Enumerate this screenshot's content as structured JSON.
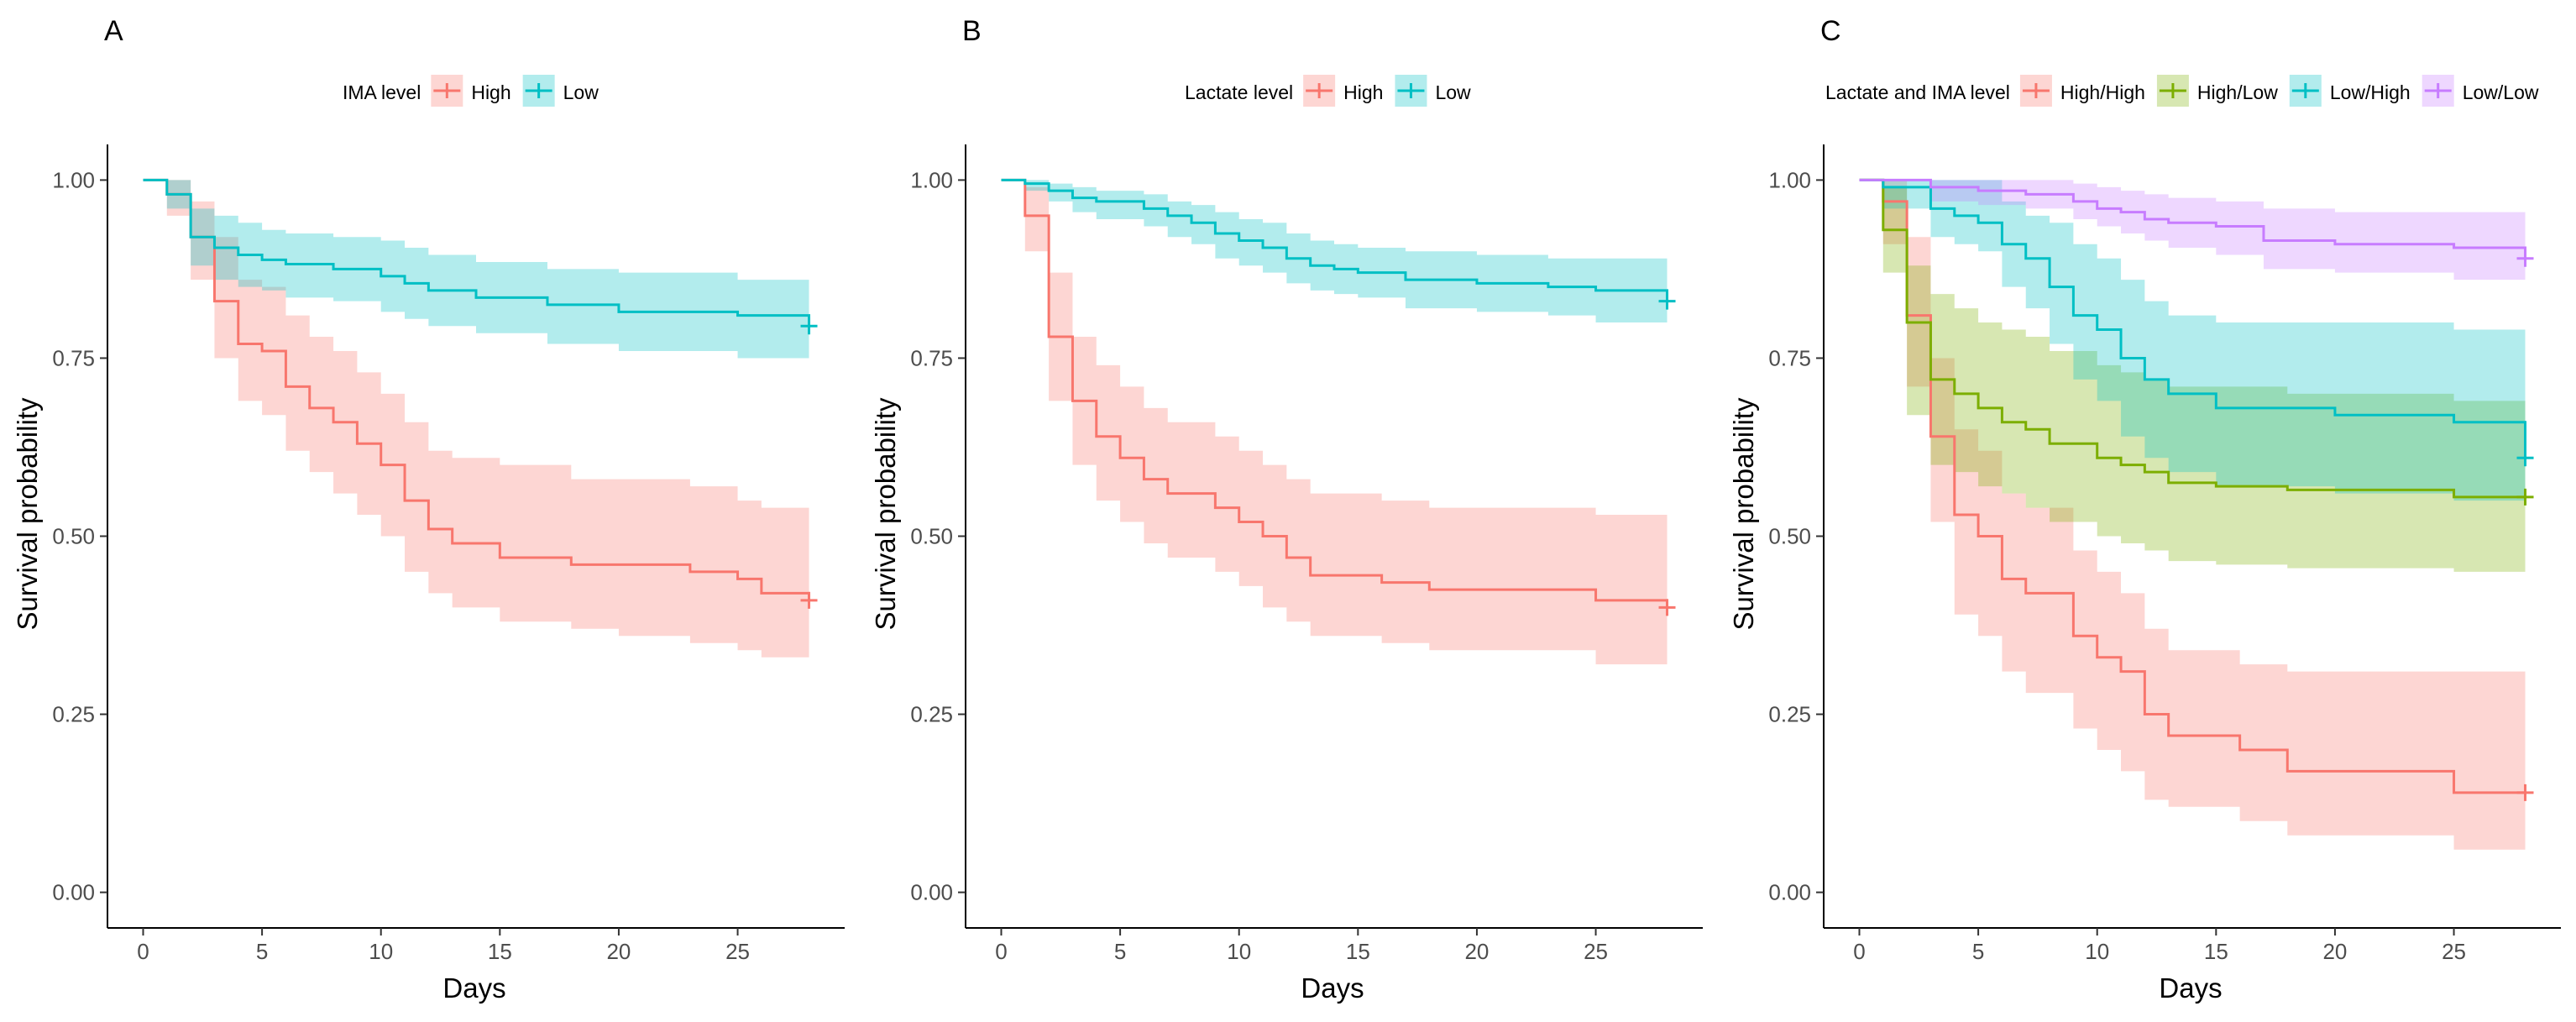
{
  "figure_type": "Kaplan-Meier survival curves",
  "chart_data": [
    {
      "type": "line",
      "panel_label": "A",
      "legend_title": "IMA level",
      "xlabel": "Days",
      "ylabel": "Survival probability",
      "xlim": [
        -1.5,
        29.5
      ],
      "ylim": [
        -0.05,
        1.05
      ],
      "xticks": [
        "0",
        "5",
        "10",
        "15",
        "20",
        "25"
      ],
      "yticks": [
        "0.00",
        "0.25",
        "0.50",
        "0.75",
        "1.00"
      ],
      "series": [
        {
          "name": "High",
          "color": "#F8766D",
          "censor_x": 28,
          "x": [
            0,
            1,
            2,
            3,
            4,
            5,
            6,
            7,
            8,
            9,
            10,
            11,
            12,
            13,
            15,
            18,
            20,
            23,
            25,
            26,
            28
          ],
          "y": [
            1.0,
            0.98,
            0.92,
            0.83,
            0.77,
            0.76,
            0.71,
            0.68,
            0.66,
            0.63,
            0.6,
            0.55,
            0.51,
            0.49,
            0.47,
            0.46,
            0.46,
            0.45,
            0.44,
            0.42,
            0.41
          ],
          "lower": [
            1.0,
            0.95,
            0.86,
            0.75,
            0.69,
            0.67,
            0.62,
            0.59,
            0.56,
            0.53,
            0.5,
            0.45,
            0.42,
            0.4,
            0.38,
            0.37,
            0.36,
            0.35,
            0.34,
            0.33,
            0.33
          ],
          "upper": [
            1.0,
            1.0,
            0.97,
            0.92,
            0.86,
            0.85,
            0.81,
            0.78,
            0.76,
            0.73,
            0.7,
            0.66,
            0.62,
            0.61,
            0.6,
            0.58,
            0.58,
            0.57,
            0.55,
            0.54,
            0.54
          ]
        },
        {
          "name": "Low",
          "color": "#00BFC4",
          "censor_x": 28,
          "x": [
            0,
            1,
            2,
            3,
            4,
            5,
            6,
            8,
            10,
            11,
            12,
            14,
            17,
            20,
            25,
            28
          ],
          "y": [
            1.0,
            0.98,
            0.92,
            0.905,
            0.895,
            0.888,
            0.882,
            0.875,
            0.865,
            0.855,
            0.845,
            0.835,
            0.825,
            0.815,
            0.81,
            0.795
          ],
          "lower": [
            1.0,
            0.96,
            0.88,
            0.86,
            0.85,
            0.845,
            0.835,
            0.83,
            0.815,
            0.805,
            0.795,
            0.785,
            0.77,
            0.76,
            0.75,
            0.75
          ],
          "upper": [
            1.0,
            1.0,
            0.96,
            0.95,
            0.94,
            0.93,
            0.925,
            0.92,
            0.915,
            0.905,
            0.895,
            0.885,
            0.875,
            0.87,
            0.86,
            0.86
          ]
        }
      ]
    },
    {
      "type": "line",
      "panel_label": "B",
      "legend_title": "Lactate level",
      "xlabel": "Days",
      "ylabel": "Survival probability",
      "xlim": [
        -1.5,
        29.5
      ],
      "ylim": [
        -0.05,
        1.05
      ],
      "xticks": [
        "0",
        "5",
        "10",
        "15",
        "20",
        "25"
      ],
      "yticks": [
        "0.00",
        "0.25",
        "0.50",
        "0.75",
        "1.00"
      ],
      "series": [
        {
          "name": "High",
          "color": "#F8766D",
          "censor_x": 28,
          "x": [
            0,
            1,
            2,
            3,
            4,
            5,
            6,
            7,
            9,
            10,
            11,
            12,
            13,
            16,
            18,
            25,
            28
          ],
          "y": [
            1.0,
            0.95,
            0.78,
            0.69,
            0.64,
            0.61,
            0.58,
            0.56,
            0.54,
            0.52,
            0.5,
            0.47,
            0.445,
            0.435,
            0.425,
            0.41,
            0.4
          ],
          "lower": [
            1.0,
            0.9,
            0.69,
            0.6,
            0.55,
            0.52,
            0.49,
            0.47,
            0.45,
            0.43,
            0.4,
            0.38,
            0.36,
            0.35,
            0.34,
            0.32,
            0.32
          ],
          "upper": [
            1.0,
            0.99,
            0.87,
            0.78,
            0.74,
            0.71,
            0.68,
            0.66,
            0.64,
            0.62,
            0.6,
            0.58,
            0.56,
            0.55,
            0.54,
            0.53,
            0.53
          ]
        },
        {
          "name": "Low",
          "color": "#00BFC4",
          "censor_x": 28,
          "x": [
            0,
            1,
            2,
            3,
            4,
            6,
            7,
            8,
            9,
            10,
            11,
            12,
            13,
            14,
            15,
            17,
            20,
            23,
            25,
            28
          ],
          "y": [
            1.0,
            0.995,
            0.985,
            0.975,
            0.97,
            0.96,
            0.95,
            0.94,
            0.925,
            0.915,
            0.905,
            0.89,
            0.88,
            0.875,
            0.87,
            0.86,
            0.855,
            0.85,
            0.845,
            0.83
          ],
          "lower": [
            1.0,
            0.985,
            0.97,
            0.955,
            0.945,
            0.935,
            0.92,
            0.91,
            0.89,
            0.88,
            0.87,
            0.855,
            0.845,
            0.84,
            0.835,
            0.82,
            0.815,
            0.81,
            0.8,
            0.8
          ],
          "upper": [
            1.0,
            1.0,
            0.995,
            0.99,
            0.985,
            0.98,
            0.97,
            0.965,
            0.955,
            0.945,
            0.94,
            0.925,
            0.915,
            0.91,
            0.905,
            0.9,
            0.895,
            0.89,
            0.89,
            0.89
          ]
        }
      ]
    },
    {
      "type": "line",
      "panel_label": "C",
      "legend_title": "Lactate and IMA level",
      "xlabel": "Days",
      "ylabel": "Survival probability",
      "xlim": [
        -1.5,
        29.5
      ],
      "ylim": [
        -0.05,
        1.05
      ],
      "xticks": [
        "0",
        "5",
        "10",
        "15",
        "20",
        "25"
      ],
      "yticks": [
        "0.00",
        "0.25",
        "0.50",
        "0.75",
        "1.00"
      ],
      "series": [
        {
          "name": "High/High",
          "color": "#F8766D",
          "censor_x": 28,
          "x": [
            0,
            1,
            2,
            3,
            4,
            5,
            6,
            7,
            9,
            10,
            11,
            12,
            13,
            16,
            18,
            25,
            28
          ],
          "y": [
            1.0,
            0.97,
            0.81,
            0.64,
            0.53,
            0.5,
            0.44,
            0.42,
            0.36,
            0.33,
            0.31,
            0.25,
            0.22,
            0.2,
            0.17,
            0.14,
            0.14
          ],
          "lower": [
            1.0,
            0.91,
            0.71,
            0.52,
            0.39,
            0.36,
            0.31,
            0.28,
            0.23,
            0.2,
            0.17,
            0.13,
            0.12,
            0.1,
            0.08,
            0.06,
            0.06
          ],
          "upper": [
            1.0,
            1.0,
            0.92,
            0.75,
            0.65,
            0.62,
            0.56,
            0.54,
            0.48,
            0.45,
            0.42,
            0.37,
            0.34,
            0.32,
            0.31,
            0.31,
            0.31
          ]
        },
        {
          "name": "High/Low",
          "color": "#7CAE00",
          "censor_x": 28,
          "x": [
            0,
            1,
            2,
            3,
            4,
            5,
            6,
            7,
            8,
            10,
            11,
            12,
            13,
            15,
            18,
            25,
            28
          ],
          "y": [
            1.0,
            0.93,
            0.8,
            0.72,
            0.7,
            0.68,
            0.66,
            0.65,
            0.63,
            0.61,
            0.6,
            0.59,
            0.575,
            0.57,
            0.565,
            0.555,
            0.555
          ],
          "lower": [
            1.0,
            0.87,
            0.67,
            0.6,
            0.59,
            0.57,
            0.56,
            0.54,
            0.52,
            0.5,
            0.49,
            0.48,
            0.465,
            0.46,
            0.455,
            0.45,
            0.45
          ],
          "upper": [
            1.0,
            0.99,
            0.88,
            0.84,
            0.82,
            0.8,
            0.79,
            0.78,
            0.76,
            0.74,
            0.73,
            0.72,
            0.71,
            0.71,
            0.7,
            0.69,
            0.69
          ]
        },
        {
          "name": "Low/High",
          "color": "#00BFC4",
          "censor_x": 28,
          "x": [
            0,
            1,
            3,
            4,
            5,
            6,
            7,
            8,
            9,
            10,
            11,
            12,
            13,
            15,
            20,
            25,
            28
          ],
          "y": [
            1.0,
            0.99,
            0.96,
            0.95,
            0.94,
            0.91,
            0.89,
            0.85,
            0.81,
            0.79,
            0.75,
            0.72,
            0.7,
            0.68,
            0.67,
            0.66,
            0.61
          ],
          "lower": [
            1.0,
            0.96,
            0.92,
            0.91,
            0.9,
            0.85,
            0.82,
            0.77,
            0.72,
            0.69,
            0.64,
            0.61,
            0.59,
            0.57,
            0.56,
            0.55,
            0.52
          ],
          "upper": [
            1.0,
            1.0,
            1.0,
            1.0,
            1.0,
            0.97,
            0.95,
            0.94,
            0.91,
            0.89,
            0.86,
            0.83,
            0.81,
            0.8,
            0.8,
            0.79,
            0.79
          ]
        },
        {
          "name": "Low/Low",
          "color": "#C77CFF",
          "censor_x": 28,
          "x": [
            0,
            3,
            5,
            7,
            9,
            10,
            11,
            12,
            13,
            15,
            17,
            20,
            25,
            28
          ],
          "y": [
            1.0,
            0.99,
            0.985,
            0.98,
            0.97,
            0.96,
            0.955,
            0.945,
            0.94,
            0.935,
            0.915,
            0.91,
            0.905,
            0.89
          ],
          "lower": [
            1.0,
            0.97,
            0.965,
            0.96,
            0.945,
            0.935,
            0.925,
            0.915,
            0.905,
            0.895,
            0.875,
            0.87,
            0.86,
            0.86
          ],
          "upper": [
            1.0,
            1.0,
            1.0,
            1.0,
            0.995,
            0.99,
            0.985,
            0.98,
            0.975,
            0.97,
            0.96,
            0.955,
            0.955,
            0.955
          ]
        }
      ]
    }
  ]
}
